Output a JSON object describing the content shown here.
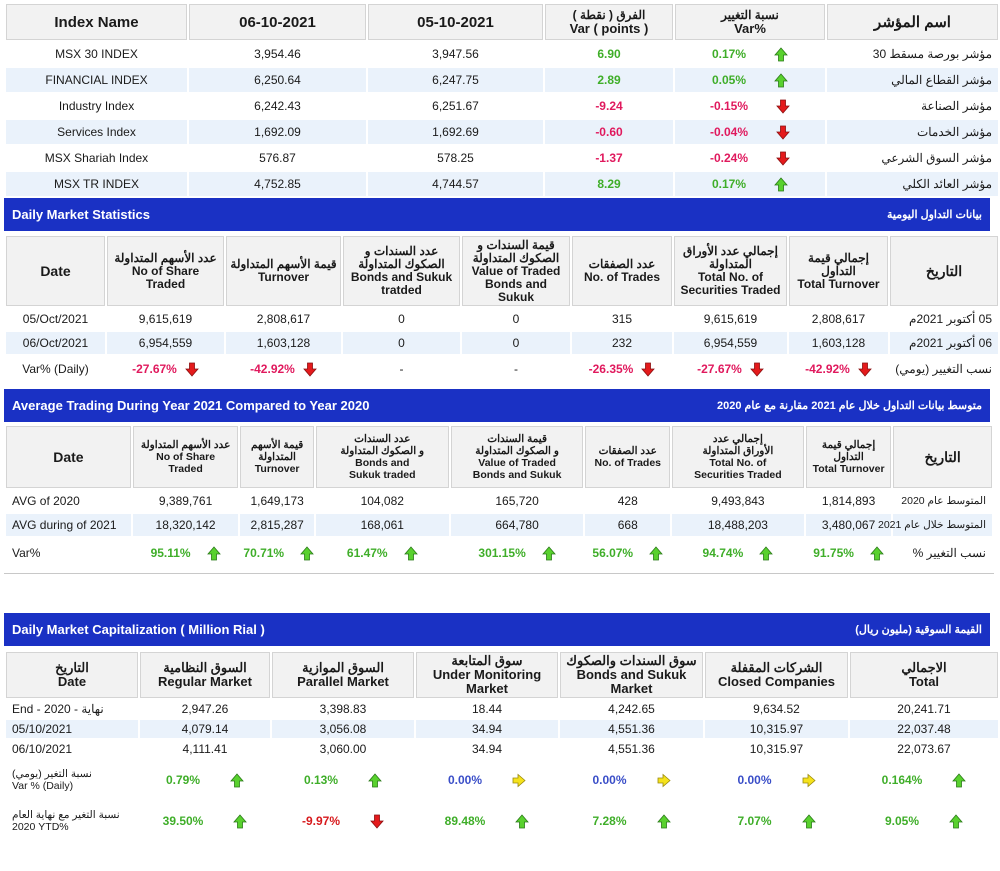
{
  "colors": {
    "banner": "#1a31c4",
    "positive": "#3fae29",
    "negative": "#e0195d",
    "neutral": "#3a4ec8"
  },
  "indices": {
    "headers": {
      "name": "Index Name",
      "d1": "06-10-2021",
      "d2": "05-10-2021",
      "var_ar": "الفرق ( نقطة )",
      "var_en": "Var ( points )",
      "pct_ar": "نسبة التغيير",
      "pct_en": "Var%",
      "ar_name": "اسم المؤشر"
    },
    "rows": [
      {
        "name": "MSX 30 INDEX",
        "d1": "3,954.46",
        "d2": "3,947.56",
        "var": "6.90",
        "pct": "0.17%",
        "dir": "up",
        "ar": "مؤشر بورصة مسقط 30"
      },
      {
        "name": "FINANCIAL INDEX",
        "d1": "6,250.64",
        "d2": "6,247.75",
        "var": "2.89",
        "pct": "0.05%",
        "dir": "up",
        "ar": "مؤشر القطاع المالي"
      },
      {
        "name": "Industry Index",
        "d1": "6,242.43",
        "d2": "6,251.67",
        "var": "-9.24",
        "pct": "-0.15%",
        "dir": "down",
        "ar": "مؤشر الصناعة"
      },
      {
        "name": "Services Index",
        "d1": "1,692.09",
        "d2": "1,692.69",
        "var": "-0.60",
        "pct": "-0.04%",
        "dir": "down",
        "ar": "مؤشر الخدمات"
      },
      {
        "name": "MSX Shariah Index",
        "d1": "576.87",
        "d2": "578.25",
        "var": "-1.37",
        "pct": "-0.24%",
        "dir": "down",
        "ar": "مؤشر السوق الشرعي"
      },
      {
        "name": "MSX TR INDEX",
        "d1": "4,752.85",
        "d2": "4,744.57",
        "var": "8.29",
        "pct": "0.17%",
        "dir": "up",
        "ar": "مؤشر العائد الكلي"
      }
    ]
  },
  "daily_stats": {
    "title_en": "Daily Market Statistics",
    "title_ar": "بيانات التداول اليومية",
    "headers": {
      "date": "Date",
      "shares": "عدد الأسهم المتداولة\nNo of Share Traded",
      "turnover": "قيمة الأسهم المتداولة\nTurnover",
      "bonds_count": "عدد السندات و الصكوك المتداولة\nBonds and Sukuk tratded",
      "bonds_value": "قيمة السندات و الصكوك المتداولة\nValue of Traded Bonds and Sukuk",
      "trades": "عدد الصفقات\nNo. of Trades",
      "total_no": "إجمالي عدد الأوراق المتداولة\nTotal No. of Securities Traded",
      "total_turnover": "إجمالي قيمة التداول\nTotal Turnover",
      "ar_date": "التاريخ"
    },
    "rows": [
      {
        "date": "05/Oct/2021",
        "shares": "9,615,619",
        "turnover": "2,808,617",
        "bonds_count": "0",
        "bonds_value": "0",
        "trades": "315",
        "total_no": "9,615,619",
        "total_turnover": "2,808,617",
        "ar": "05 أكتوبر 2021م"
      },
      {
        "date": "06/Oct/2021",
        "shares": "6,954,559",
        "turnover": "1,603,128",
        "bonds_count": "0",
        "bonds_value": "0",
        "trades": "232",
        "total_no": "6,954,559",
        "total_turnover": "1,603,128",
        "ar": "06 أكتوبر 2021م"
      }
    ],
    "var": {
      "label": "Var% (Daily)",
      "shares": "-27.67%",
      "turnover": "-42.92%",
      "bonds_count": "-",
      "bonds_value": "-",
      "trades": "-26.35%",
      "total_no": "-27.67%",
      "total_turnover": "-42.92%",
      "ar": "نسب التغيير (يومي)"
    }
  },
  "avg_trading": {
    "title_en": "Average Trading During Year 2021 Compared to Year 2020",
    "title_ar": "متوسط بيانات التداول خلال عام 2021 مقارنة مع عام 2020",
    "headers": {
      "date": "Date",
      "shares": "عدد الأسهم المتداولة\nNo of Share\nTraded",
      "turnover": "قيمة الأسهم\nالمتداولة\nTurnover",
      "bonds_count": "عدد السندات\nو الصكوك المتداولة\nBonds and\nSukuk traded",
      "bonds_value": "قيمة السندات\nو الصكوك المتداولة\nValue of Traded\nBonds and Sukuk",
      "trades": "عدد الصفقات\nNo. of Trades",
      "total_no": "إجمالي عدد\nالأوراق المتداولة\nTotal No. of\nSecurities Traded",
      "total_turnover": "إجمالي قيمة التداول\nTotal Turnover",
      "ar_date": "التاريخ"
    },
    "rows": [
      {
        "date": "AVG of 2020",
        "shares": "9,389,761",
        "turnover": "1,649,173",
        "bonds_count": "104,082",
        "bonds_value": "165,720",
        "trades": "428",
        "total_no": "9,493,843",
        "total_turnover": "1,814,893",
        "ar": "المتوسط عام 2020"
      },
      {
        "date": "AVG during of 2021",
        "shares": "18,320,142",
        "turnover": "2,815,287",
        "bonds_count": "168,061",
        "bonds_value": "664,780",
        "trades": "668",
        "total_no": "18,488,203",
        "total_turnover": "3,480,067",
        "ar": "المتوسط خلال عام 2021"
      }
    ],
    "var": {
      "label": "Var%",
      "shares": "95.11%",
      "turnover": "70.71%",
      "bonds_count": "61.47%",
      "bonds_value": "301.15%",
      "trades": "56.07%",
      "total_no": "94.74%",
      "total_turnover": "91.75%",
      "ar": "نسب التغيير %"
    }
  },
  "market_cap": {
    "title_en": "Daily Market Capitalization ( Million Rial )",
    "title_ar": "القيمة السوقية (مليون ريال)",
    "headers": {
      "date": "التاريخ\nDate",
      "regular": "السوق النظامية\nRegular Market",
      "parallel": "السوق الموازية\nParallel Market",
      "monitoring": "سوق المتابعة\nUnder Monitoring\nMarket",
      "bonds": "سوق السندات والصكوك\nBonds and Sukuk\nMarket",
      "closed": "الشركات المقفلة\nClosed Companies",
      "total": "الاجمالي\nTotal"
    },
    "rows": [
      {
        "date": "End - 2020 - نهاية",
        "regular": "2,947.26",
        "parallel": "3,398.83",
        "monitoring": "18.44",
        "bonds": "4,242.65",
        "closed": "9,634.52",
        "total": "20,241.71"
      },
      {
        "date": "05/10/2021",
        "regular": "4,079.14",
        "parallel": "3,056.08",
        "monitoring": "34.94",
        "bonds": "4,551.36",
        "closed": "10,315.97",
        "total": "22,037.48"
      },
      {
        "date": "06/10/2021",
        "regular": "4,111.41",
        "parallel": "3,060.00",
        "monitoring": "34.94",
        "bonds": "4,551.36",
        "closed": "10,315.97",
        "total": "22,073.67"
      }
    ],
    "var_daily": {
      "label": "نسبة التغير (يومي)\nVar % (Daily)",
      "regular": "0.79%",
      "parallel": "0.13%",
      "monitoring": "0.00%",
      "bonds": "0.00%",
      "closed": "0.00%",
      "total": "0.164%"
    },
    "var_ytd": {
      "label": "نسبة التغير مع نهاية العام\n2020 YTD%",
      "regular": "39.50%",
      "parallel": "-9.97%",
      "monitoring": "89.48%",
      "bonds": "7.28%",
      "closed": "7.07%",
      "total": "9.05%"
    }
  }
}
